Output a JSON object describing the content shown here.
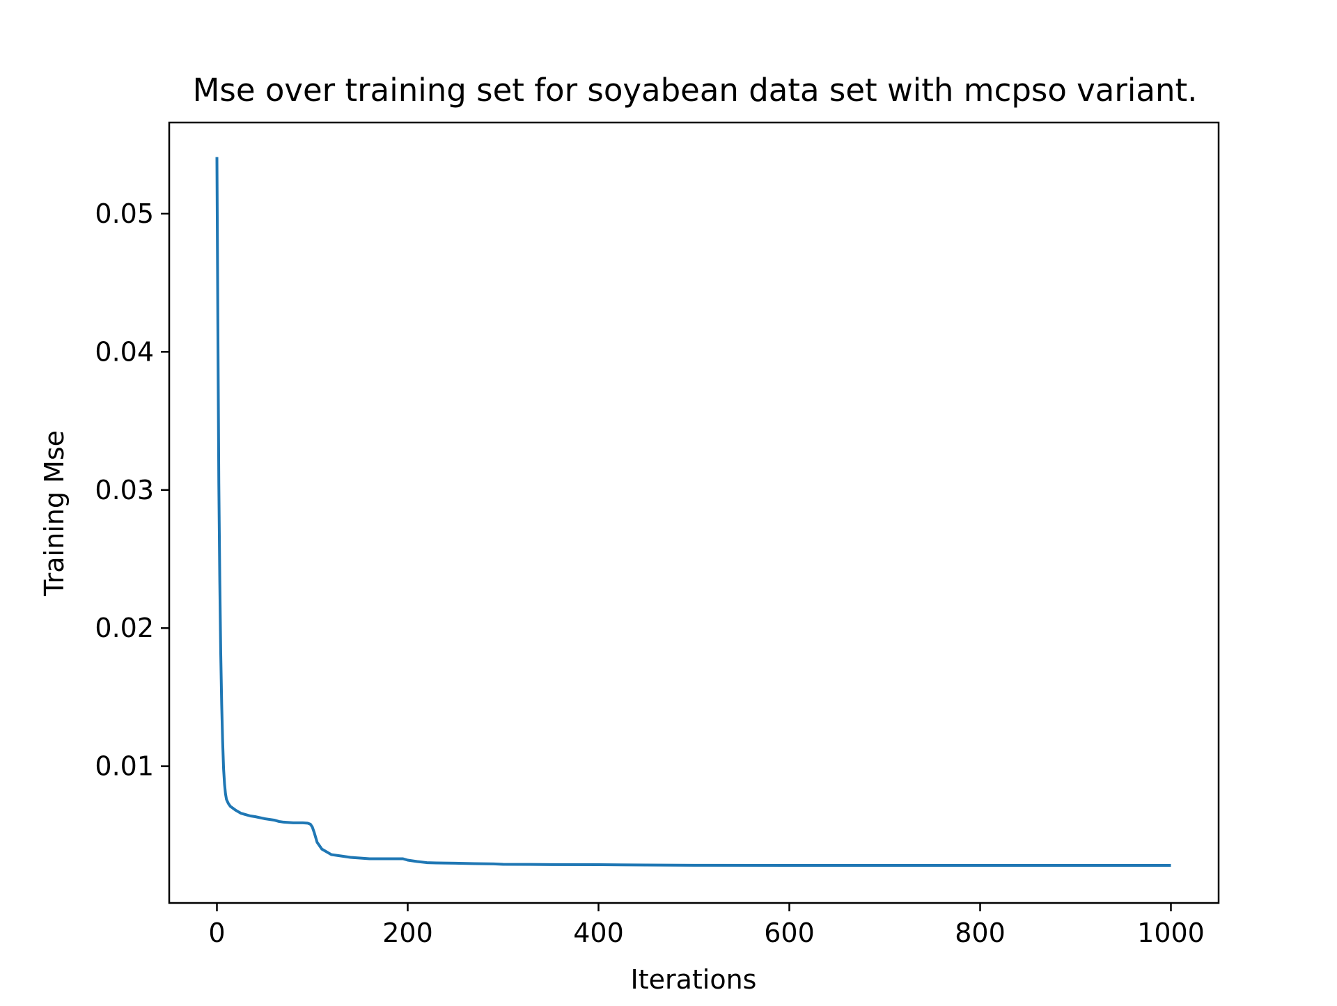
{
  "chart_data": {
    "type": "line",
    "title": "Mse over training set for soyabean data set with mcpso variant.",
    "xlabel": "Iterations",
    "ylabel": "Training Mse",
    "xlim": [
      -50,
      1050
    ],
    "ylim": [
      0.0001,
      0.0566
    ],
    "xticks": [
      0,
      200,
      400,
      600,
      800,
      1000
    ],
    "xtick_labels": [
      "0",
      "200",
      "400",
      "600",
      "800",
      "1000"
    ],
    "yticks": [
      0.01,
      0.02,
      0.03,
      0.04,
      0.05
    ],
    "ytick_labels": [
      "0.01",
      "0.02",
      "0.03",
      "0.04",
      "0.05"
    ],
    "grid": false,
    "legend": "none",
    "series": [
      {
        "color": "#1f77b4",
        "x": [
          0,
          1,
          2,
          3,
          4,
          5,
          6,
          7,
          8,
          9,
          10,
          12,
          14,
          16,
          18,
          20,
          25,
          30,
          35,
          40,
          50,
          60,
          65,
          70,
          80,
          90,
          95,
          98,
          100,
          102,
          105,
          110,
          120,
          130,
          140,
          150,
          160,
          170,
          180,
          190,
          195,
          200,
          210,
          220,
          230,
          250,
          270,
          290,
          300,
          350,
          400,
          450,
          500,
          600,
          700,
          800,
          900,
          1000
        ],
        "y": [
          0.0541,
          0.042,
          0.0305,
          0.0235,
          0.0182,
          0.0145,
          0.0118,
          0.0098,
          0.0087,
          0.008,
          0.0076,
          0.0073,
          0.0071,
          0.007,
          0.0069,
          0.0068,
          0.0066,
          0.0065,
          0.0064,
          0.00635,
          0.0062,
          0.0061,
          0.006,
          0.00595,
          0.0059,
          0.0059,
          0.00588,
          0.0058,
          0.0056,
          0.0052,
          0.0045,
          0.004,
          0.0036,
          0.0035,
          0.0034,
          0.00335,
          0.0033,
          0.0033,
          0.0033,
          0.0033,
          0.0033,
          0.0032,
          0.0031,
          0.00302,
          0.003,
          0.00298,
          0.00295,
          0.00293,
          0.0029,
          0.00288,
          0.00287,
          0.00285,
          0.00283,
          0.00282,
          0.00282,
          0.00282,
          0.00282,
          0.00282
        ]
      }
    ]
  }
}
